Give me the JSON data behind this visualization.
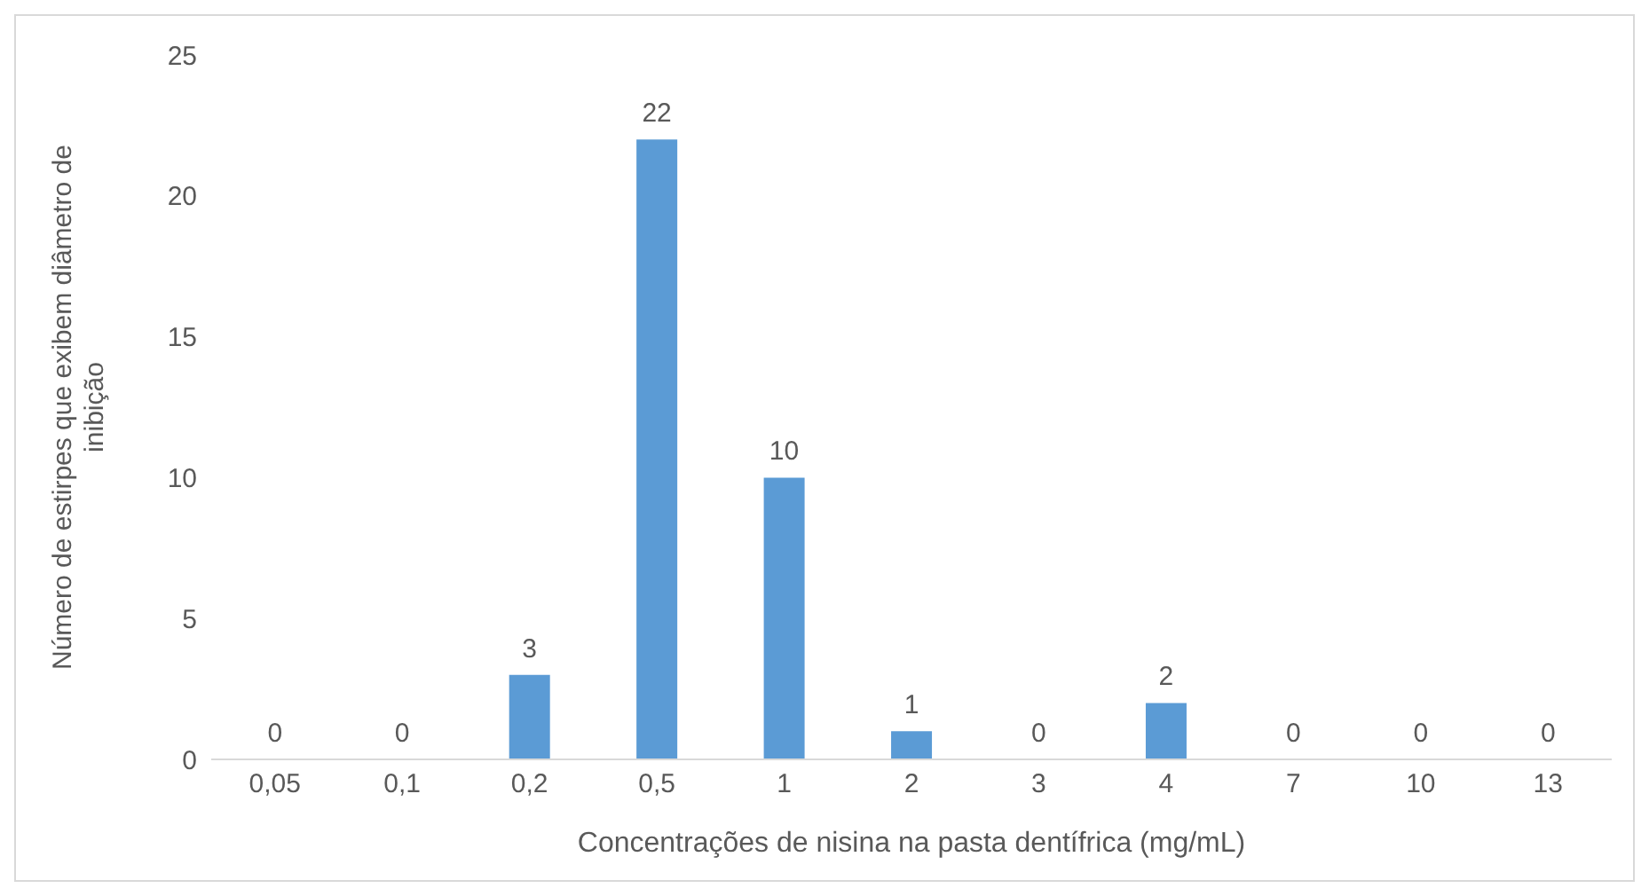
{
  "chart_data": {
    "type": "bar",
    "xlabel": "Concentrações de nisina na pasta dentífrica (mg/mL)",
    "ylabel": "Número de estirpes que exibem diâmetro de inibição",
    "categories": [
      "0,05",
      "0,1",
      "0,2",
      "0,5",
      "1",
      "2",
      "3",
      "4",
      "7",
      "10",
      "13"
    ],
    "values": [
      0,
      0,
      3,
      22,
      10,
      1,
      0,
      2,
      0,
      0,
      0
    ],
    "color": "#5b9bd5",
    "ylim": [
      0,
      25
    ],
    "yticks": [
      0,
      5,
      10,
      15,
      20,
      25
    ],
    "data_labels": true,
    "grid": false
  }
}
